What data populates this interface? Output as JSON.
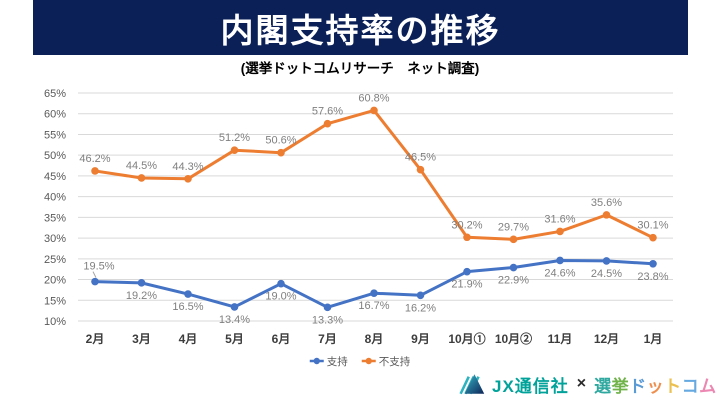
{
  "header": {
    "title": "内閣支持率の推移",
    "subtitle": "(選挙ドットコムリサーチ　ネット調査)"
  },
  "chart_data": {
    "type": "line",
    "title": "内閣支持率の推移",
    "categories": [
      "2月",
      "3月",
      "4月",
      "5月",
      "6月",
      "7月",
      "8月",
      "9月",
      "10月①",
      "10月②",
      "11月",
      "12月",
      "1月"
    ],
    "series": [
      {
        "name": "支持",
        "color": "#4472c4",
        "values": [
          19.5,
          19.2,
          16.5,
          13.4,
          19.0,
          13.3,
          16.7,
          16.2,
          21.9,
          22.9,
          24.6,
          24.5,
          23.8
        ],
        "label_position": "below",
        "first_label_above": true
      },
      {
        "name": "不支持",
        "color": "#ed7d31",
        "values": [
          46.2,
          44.5,
          44.3,
          51.2,
          50.6,
          57.6,
          60.8,
          46.5,
          30.2,
          29.7,
          31.6,
          35.6,
          30.1
        ],
        "label_position": "above"
      }
    ],
    "ylim": [
      10,
      65
    ],
    "y_step": 5,
    "y_tick_suffix": "%",
    "grid": true,
    "legend_position": "bottom",
    "xlabel": "",
    "ylabel": ""
  },
  "legend": {
    "items": [
      {
        "label": "支持",
        "color": "#4472c4"
      },
      {
        "label": "不支持",
        "color": "#ed7d31"
      }
    ]
  },
  "footer": {
    "jx_brand": "JX通信社",
    "separator": "×",
    "senkyo_brand_chars": [
      {
        "ch": "選",
        "color": "#2fa8a0"
      },
      {
        "ch": "挙",
        "color": "#71b34b"
      },
      {
        "ch": "ド",
        "color": "#5b9bd5"
      },
      {
        "ch": "ッ",
        "color": "#ef8f4e"
      },
      {
        "ch": "ト",
        "color": "#ecc04f"
      },
      {
        "ch": "コ",
        "color": "#66a9e0"
      },
      {
        "ch": "ム",
        "color": "#ec87b2"
      }
    ]
  },
  "colors": {
    "header_bg": "#0a2057",
    "grid": "#d9d9d9",
    "data_label": "#7f7f7f",
    "y_tick": "#595959",
    "x_tick": "#3d3d3d",
    "support": "#4472c4",
    "oppose": "#ed7d31",
    "jx_teal": "#00a29a",
    "legend_text": "#595959"
  }
}
